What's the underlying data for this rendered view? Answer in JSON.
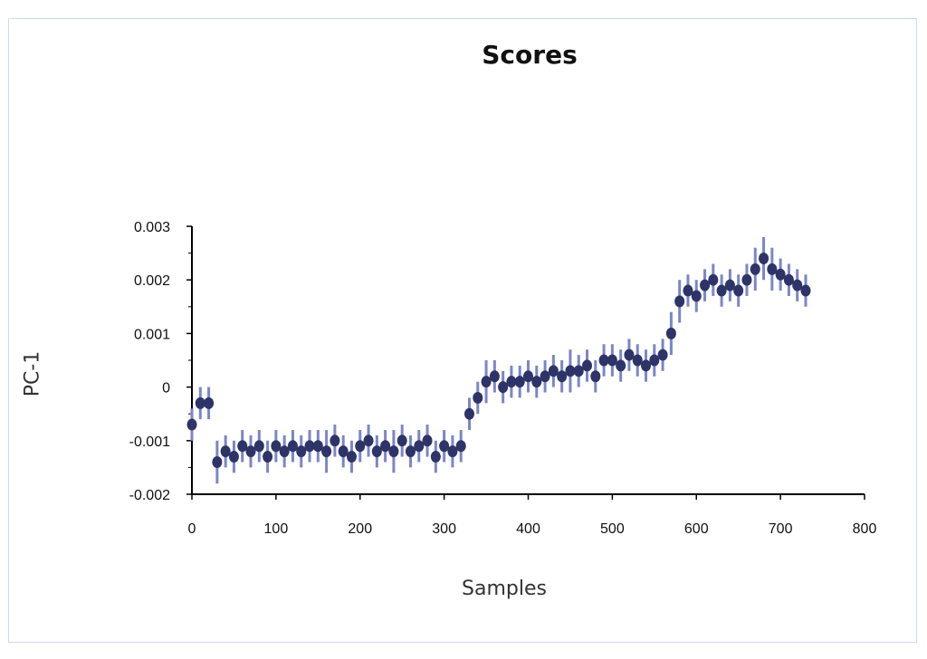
{
  "chart_data": {
    "type": "scatter",
    "title": "Scores",
    "xlabel": "Samples",
    "ylabel": "PC-1",
    "xlim": [
      0,
      800
    ],
    "ylim": [
      -0.002,
      0.003
    ],
    "x_ticks": [
      "0",
      "100",
      "200",
      "300",
      "400",
      "500",
      "600",
      "700",
      "800"
    ],
    "y_ticks": [
      "0.003",
      "0.002",
      "0.001",
      "0",
      "-0.001",
      "-0.002"
    ],
    "grid": false,
    "legend": "none",
    "marker_color": "#2e3468",
    "error_color": "#7b86c6",
    "series": [
      {
        "x": [
          0,
          10,
          20,
          30,
          40,
          50,
          60,
          70,
          80,
          90,
          100,
          110,
          120,
          130,
          140,
          150,
          160,
          170,
          180,
          190,
          200,
          210,
          220,
          230,
          240,
          250,
          260,
          270,
          280,
          290,
          300,
          310,
          320,
          330,
          340,
          350,
          360,
          370,
          380,
          390,
          400,
          410,
          420,
          430,
          440,
          450,
          460,
          470,
          480,
          490,
          500,
          510,
          520,
          530,
          540,
          550,
          560,
          570,
          580,
          590,
          600,
          610,
          620,
          630,
          640,
          650,
          660,
          670,
          680,
          690,
          700,
          710,
          720,
          730
        ],
        "y": [
          -0.0007,
          -0.0003,
          -0.0003,
          -0.0014,
          -0.0012,
          -0.0013,
          -0.0011,
          -0.0012,
          -0.0011,
          -0.0013,
          -0.0011,
          -0.0012,
          -0.0011,
          -0.0012,
          -0.0011,
          -0.0011,
          -0.0012,
          -0.001,
          -0.0012,
          -0.0013,
          -0.0011,
          -0.001,
          -0.0012,
          -0.0011,
          -0.0012,
          -0.001,
          -0.0012,
          -0.0011,
          -0.001,
          -0.0013,
          -0.0011,
          -0.0012,
          -0.0011,
          -0.0005,
          -0.0002,
          0.0001,
          0.0002,
          0.0,
          0.0001,
          0.0001,
          0.0002,
          0.0001,
          0.0002,
          0.0003,
          0.0002,
          0.0003,
          0.0003,
          0.0004,
          0.0002,
          0.0005,
          0.0005,
          0.0004,
          0.0006,
          0.0005,
          0.0004,
          0.0005,
          0.0006,
          0.001,
          0.0016,
          0.0018,
          0.0017,
          0.0019,
          0.002,
          0.0018,
          0.0019,
          0.0018,
          0.002,
          0.0022,
          0.0024,
          0.0022,
          0.0021,
          0.002,
          0.0019,
          0.0018
        ],
        "error": [
          0.0003,
          0.0003,
          0.0003,
          0.0004,
          0.0003,
          0.0003,
          0.0003,
          0.0003,
          0.0003,
          0.0003,
          0.0003,
          0.0003,
          0.0003,
          0.0003,
          0.0003,
          0.0003,
          0.0004,
          0.0003,
          0.0003,
          0.0003,
          0.0003,
          0.0003,
          0.0003,
          0.0003,
          0.0004,
          0.0003,
          0.0003,
          0.0003,
          0.0003,
          0.0003,
          0.0003,
          0.0003,
          0.0003,
          0.0003,
          0.0003,
          0.0004,
          0.0003,
          0.0003,
          0.0003,
          0.0003,
          0.0003,
          0.0003,
          0.0003,
          0.0003,
          0.0003,
          0.0004,
          0.0003,
          0.0003,
          0.0003,
          0.0003,
          0.0003,
          0.0003,
          0.0003,
          0.0003,
          0.0003,
          0.0003,
          0.0003,
          0.0004,
          0.0004,
          0.0003,
          0.0003,
          0.0003,
          0.0003,
          0.0003,
          0.0003,
          0.0003,
          0.0003,
          0.0004,
          0.0004,
          0.0004,
          0.0003,
          0.0003,
          0.0003,
          0.0003
        ]
      }
    ]
  }
}
